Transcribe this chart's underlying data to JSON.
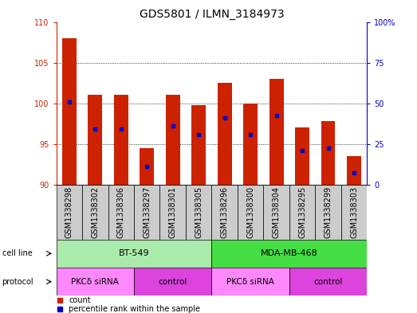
{
  "title": "GDS5801 / ILMN_3184973",
  "samples": [
    "GSM1338298",
    "GSM1338302",
    "GSM1338306",
    "GSM1338297",
    "GSM1338301",
    "GSM1338305",
    "GSM1338296",
    "GSM1338300",
    "GSM1338304",
    "GSM1338295",
    "GSM1338299",
    "GSM1338303"
  ],
  "bar_tops": [
    108.0,
    101.0,
    101.0,
    94.5,
    101.0,
    99.8,
    102.5,
    100.0,
    103.0,
    97.0,
    97.8,
    93.5
  ],
  "blue_dots": [
    100.2,
    96.8,
    96.8,
    92.2,
    97.2,
    96.2,
    98.2,
    96.2,
    98.5,
    94.2,
    94.5,
    91.5
  ],
  "bar_base": 90,
  "ylim": [
    90,
    110
  ],
  "yticks_left": [
    90,
    95,
    100,
    105,
    110
  ],
  "yticks_right": [
    0,
    25,
    50,
    75,
    100
  ],
  "bar_color": "#cc2200",
  "dot_color": "#0000cc",
  "cell_line_groups": [
    {
      "label": "BT-549",
      "start": 0,
      "end": 6,
      "color": "#aaeaaa"
    },
    {
      "label": "MDA-MB-468",
      "start": 6,
      "end": 12,
      "color": "#44dd44"
    }
  ],
  "protocol_groups": [
    {
      "label": "PKCδ siRNA",
      "start": 0,
      "end": 3,
      "color": "#ff88ff"
    },
    {
      "label": "control",
      "start": 3,
      "end": 6,
      "color": "#dd44dd"
    },
    {
      "label": "PKCδ siRNA",
      "start": 6,
      "end": 9,
      "color": "#ff88ff"
    },
    {
      "label": "control",
      "start": 9,
      "end": 12,
      "color": "#dd44dd"
    }
  ],
  "sample_bg_color": "#cccccc",
  "grid_color": "#000000",
  "left_axis_color": "#cc2200",
  "right_axis_color": "#0000cc",
  "title_fontsize": 10,
  "tick_fontsize": 7,
  "bar_width": 0.55,
  "fig_width": 5.23,
  "fig_height": 3.93,
  "fig_dpi": 100
}
